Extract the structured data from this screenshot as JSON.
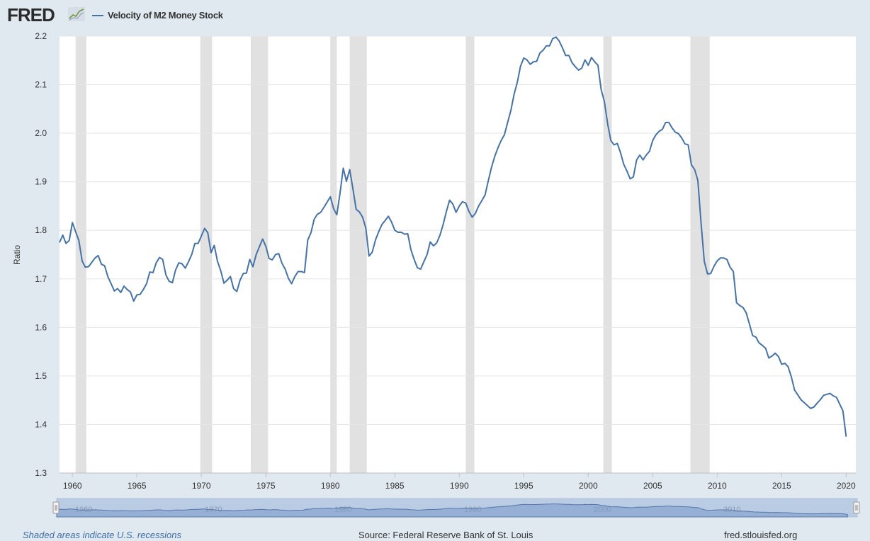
{
  "header": {
    "logo_text": "FRED",
    "logo_icon": "chart-trend-icon",
    "legend_label": "Velocity of M2 Money Stock",
    "series_color": "#4572a7"
  },
  "chart_data": {
    "type": "line",
    "title": "Velocity of M2 Money Stock",
    "xlabel": "",
    "ylabel": "Ratio",
    "ylim": [
      1.3,
      2.2
    ],
    "xlim": [
      1959.0,
      2020.75
    ],
    "yticks": [
      "1.3",
      "1.4",
      "1.5",
      "1.6",
      "1.7",
      "1.8",
      "1.9",
      "2.0",
      "2.1",
      "2.2"
    ],
    "xticks": [
      "1960",
      "1965",
      "1970",
      "1975",
      "1980",
      "1985",
      "1990",
      "1995",
      "2000",
      "2005",
      "2010",
      "2015",
      "2020"
    ],
    "navigator_labels": [
      "1960",
      "1970",
      "1980",
      "1990",
      "2000",
      "2010"
    ],
    "recessions": [
      [
        1960.25,
        1961.08
      ],
      [
        1969.92,
        1970.83
      ],
      [
        1973.83,
        1975.17
      ],
      [
        1980.0,
        1980.5
      ],
      [
        1981.5,
        1982.83
      ],
      [
        1990.5,
        1991.17
      ],
      [
        2001.17,
        2001.83
      ],
      [
        2007.92,
        2009.42
      ]
    ],
    "series": [
      {
        "name": "Velocity of M2 Money Stock",
        "points": [
          [
            1959.0,
            1.775
          ],
          [
            1959.25,
            1.79
          ],
          [
            1959.5,
            1.773
          ],
          [
            1959.75,
            1.779
          ],
          [
            1960.0,
            1.816
          ],
          [
            1960.25,
            1.797
          ],
          [
            1960.5,
            1.779
          ],
          [
            1960.75,
            1.737
          ],
          [
            1961.0,
            1.724
          ],
          [
            1961.25,
            1.725
          ],
          [
            1961.5,
            1.734
          ],
          [
            1961.75,
            1.743
          ],
          [
            1962.0,
            1.748
          ],
          [
            1962.25,
            1.73
          ],
          [
            1962.5,
            1.727
          ],
          [
            1962.75,
            1.704
          ],
          [
            1963.0,
            1.69
          ],
          [
            1963.25,
            1.675
          ],
          [
            1963.5,
            1.68
          ],
          [
            1963.75,
            1.672
          ],
          [
            1964.0,
            1.685
          ],
          [
            1964.25,
            1.678
          ],
          [
            1964.5,
            1.673
          ],
          [
            1964.75,
            1.654
          ],
          [
            1965.0,
            1.667
          ],
          [
            1965.25,
            1.668
          ],
          [
            1965.5,
            1.678
          ],
          [
            1965.75,
            1.69
          ],
          [
            1966.0,
            1.714
          ],
          [
            1966.25,
            1.713
          ],
          [
            1966.5,
            1.733
          ],
          [
            1966.75,
            1.744
          ],
          [
            1967.0,
            1.74
          ],
          [
            1967.25,
            1.708
          ],
          [
            1967.5,
            1.695
          ],
          [
            1967.75,
            1.692
          ],
          [
            1968.0,
            1.718
          ],
          [
            1968.25,
            1.733
          ],
          [
            1968.5,
            1.731
          ],
          [
            1968.75,
            1.722
          ],
          [
            1969.0,
            1.735
          ],
          [
            1969.25,
            1.75
          ],
          [
            1969.5,
            1.773
          ],
          [
            1969.75,
            1.773
          ],
          [
            1970.0,
            1.788
          ],
          [
            1970.25,
            1.804
          ],
          [
            1970.5,
            1.795
          ],
          [
            1970.75,
            1.754
          ],
          [
            1971.0,
            1.769
          ],
          [
            1971.25,
            1.736
          ],
          [
            1971.5,
            1.717
          ],
          [
            1971.75,
            1.691
          ],
          [
            1972.0,
            1.697
          ],
          [
            1972.25,
            1.705
          ],
          [
            1972.5,
            1.68
          ],
          [
            1972.75,
            1.674
          ],
          [
            1973.0,
            1.697
          ],
          [
            1973.25,
            1.711
          ],
          [
            1973.5,
            1.712
          ],
          [
            1973.75,
            1.74
          ],
          [
            1974.0,
            1.725
          ],
          [
            1974.25,
            1.75
          ],
          [
            1974.5,
            1.766
          ],
          [
            1974.75,
            1.782
          ],
          [
            1975.0,
            1.767
          ],
          [
            1975.25,
            1.742
          ],
          [
            1975.5,
            1.739
          ],
          [
            1975.75,
            1.75
          ],
          [
            1976.0,
            1.752
          ],
          [
            1976.25,
            1.732
          ],
          [
            1976.5,
            1.72
          ],
          [
            1976.75,
            1.701
          ],
          [
            1977.0,
            1.69
          ],
          [
            1977.25,
            1.705
          ],
          [
            1977.5,
            1.715
          ],
          [
            1977.75,
            1.715
          ],
          [
            1978.0,
            1.713
          ],
          [
            1978.25,
            1.78
          ],
          [
            1978.5,
            1.795
          ],
          [
            1978.75,
            1.823
          ],
          [
            1979.0,
            1.833
          ],
          [
            1979.25,
            1.837
          ],
          [
            1979.5,
            1.847
          ],
          [
            1979.75,
            1.858
          ],
          [
            1980.0,
            1.869
          ],
          [
            1980.25,
            1.845
          ],
          [
            1980.5,
            1.832
          ],
          [
            1980.75,
            1.876
          ],
          [
            1981.0,
            1.928
          ],
          [
            1981.25,
            1.901
          ],
          [
            1981.5,
            1.925
          ],
          [
            1981.75,
            1.886
          ],
          [
            1982.0,
            1.843
          ],
          [
            1982.25,
            1.838
          ],
          [
            1982.5,
            1.827
          ],
          [
            1982.75,
            1.805
          ],
          [
            1983.0,
            1.747
          ],
          [
            1983.25,
            1.755
          ],
          [
            1983.5,
            1.78
          ],
          [
            1983.75,
            1.797
          ],
          [
            1984.0,
            1.812
          ],
          [
            1984.25,
            1.82
          ],
          [
            1984.5,
            1.829
          ],
          [
            1984.75,
            1.817
          ],
          [
            1985.0,
            1.8
          ],
          [
            1985.25,
            1.796
          ],
          [
            1985.5,
            1.796
          ],
          [
            1985.75,
            1.792
          ],
          [
            1986.0,
            1.793
          ],
          [
            1986.25,
            1.76
          ],
          [
            1986.5,
            1.74
          ],
          [
            1986.75,
            1.723
          ],
          [
            1987.0,
            1.72
          ],
          [
            1987.25,
            1.735
          ],
          [
            1987.5,
            1.75
          ],
          [
            1987.75,
            1.776
          ],
          [
            1988.0,
            1.768
          ],
          [
            1988.25,
            1.774
          ],
          [
            1988.5,
            1.79
          ],
          [
            1988.75,
            1.812
          ],
          [
            1989.0,
            1.839
          ],
          [
            1989.25,
            1.862
          ],
          [
            1989.5,
            1.854
          ],
          [
            1989.75,
            1.837
          ],
          [
            1990.0,
            1.85
          ],
          [
            1990.25,
            1.859
          ],
          [
            1990.5,
            1.856
          ],
          [
            1990.75,
            1.839
          ],
          [
            1991.0,
            1.827
          ],
          [
            1991.25,
            1.835
          ],
          [
            1991.5,
            1.85
          ],
          [
            1991.75,
            1.861
          ],
          [
            1992.0,
            1.873
          ],
          [
            1992.25,
            1.902
          ],
          [
            1992.5,
            1.93
          ],
          [
            1992.75,
            1.952
          ],
          [
            1993.0,
            1.97
          ],
          [
            1993.25,
            1.985
          ],
          [
            1993.5,
            1.997
          ],
          [
            1993.75,
            2.022
          ],
          [
            1994.0,
            2.047
          ],
          [
            1994.25,
            2.08
          ],
          [
            1994.5,
            2.105
          ],
          [
            1994.75,
            2.138
          ],
          [
            1995.0,
            2.155
          ],
          [
            1995.25,
            2.151
          ],
          [
            1995.5,
            2.142
          ],
          [
            1995.75,
            2.147
          ],
          [
            1996.0,
            2.148
          ],
          [
            1996.25,
            2.165
          ],
          [
            1996.5,
            2.171
          ],
          [
            1996.75,
            2.18
          ],
          [
            1997.0,
            2.18
          ],
          [
            1997.25,
            2.195
          ],
          [
            1997.5,
            2.198
          ],
          [
            1997.75,
            2.19
          ],
          [
            1998.0,
            2.176
          ],
          [
            1998.25,
            2.16
          ],
          [
            1998.5,
            2.16
          ],
          [
            1998.75,
            2.145
          ],
          [
            1999.0,
            2.137
          ],
          [
            1999.25,
            2.13
          ],
          [
            1999.5,
            2.134
          ],
          [
            1999.75,
            2.151
          ],
          [
            2000.0,
            2.14
          ],
          [
            2000.25,
            2.156
          ],
          [
            2000.5,
            2.147
          ],
          [
            2000.75,
            2.14
          ],
          [
            2001.0,
            2.09
          ],
          [
            2001.25,
            2.065
          ],
          [
            2001.5,
            2.02
          ],
          [
            2001.75,
            1.985
          ],
          [
            2002.0,
            1.976
          ],
          [
            2002.25,
            1.979
          ],
          [
            2002.5,
            1.96
          ],
          [
            2002.75,
            1.936
          ],
          [
            2003.0,
            1.922
          ],
          [
            2003.25,
            1.906
          ],
          [
            2003.5,
            1.91
          ],
          [
            2003.75,
            1.945
          ],
          [
            2004.0,
            1.955
          ],
          [
            2004.25,
            1.945
          ],
          [
            2004.5,
            1.955
          ],
          [
            2004.75,
            1.963
          ],
          [
            2005.0,
            1.985
          ],
          [
            2005.25,
            1.997
          ],
          [
            2005.5,
            2.004
          ],
          [
            2005.75,
            2.008
          ],
          [
            2006.0,
            2.022
          ],
          [
            2006.25,
            2.022
          ],
          [
            2006.5,
            2.011
          ],
          [
            2006.75,
            2.002
          ],
          [
            2007.0,
            1.999
          ],
          [
            2007.25,
            1.99
          ],
          [
            2007.5,
            1.978
          ],
          [
            2007.75,
            1.976
          ],
          [
            2008.0,
            1.935
          ],
          [
            2008.25,
            1.925
          ],
          [
            2008.5,
            1.903
          ],
          [
            2008.75,
            1.814
          ],
          [
            2009.0,
            1.736
          ],
          [
            2009.25,
            1.71
          ],
          [
            2009.5,
            1.711
          ],
          [
            2009.75,
            1.726
          ],
          [
            2010.0,
            1.737
          ],
          [
            2010.25,
            1.743
          ],
          [
            2010.5,
            1.743
          ],
          [
            2010.75,
            1.74
          ],
          [
            2011.0,
            1.724
          ],
          [
            2011.25,
            1.715
          ],
          [
            2011.5,
            1.651
          ],
          [
            2011.75,
            1.645
          ],
          [
            2012.0,
            1.641
          ],
          [
            2012.25,
            1.63
          ],
          [
            2012.5,
            1.607
          ],
          [
            2012.75,
            1.583
          ],
          [
            2013.0,
            1.58
          ],
          [
            2013.25,
            1.568
          ],
          [
            2013.5,
            1.563
          ],
          [
            2013.75,
            1.557
          ],
          [
            2014.0,
            1.537
          ],
          [
            2014.25,
            1.541
          ],
          [
            2014.5,
            1.547
          ],
          [
            2014.75,
            1.54
          ],
          [
            2015.0,
            1.524
          ],
          [
            2015.25,
            1.526
          ],
          [
            2015.5,
            1.519
          ],
          [
            2015.75,
            1.498
          ],
          [
            2016.0,
            1.471
          ],
          [
            2016.25,
            1.461
          ],
          [
            2016.5,
            1.451
          ],
          [
            2016.75,
            1.445
          ],
          [
            2017.0,
            1.439
          ],
          [
            2017.25,
            1.433
          ],
          [
            2017.5,
            1.436
          ],
          [
            2017.75,
            1.444
          ],
          [
            2018.0,
            1.451
          ],
          [
            2018.25,
            1.46
          ],
          [
            2018.5,
            1.462
          ],
          [
            2018.75,
            1.464
          ],
          [
            2019.0,
            1.459
          ],
          [
            2019.25,
            1.456
          ],
          [
            2019.5,
            1.442
          ],
          [
            2019.75,
            1.428
          ],
          [
            2020.0,
            1.375
          ]
        ]
      }
    ]
  },
  "footer": {
    "recession_note": "Shaded areas indicate U.S. recessions",
    "source": "Source: Federal Reserve Bank of St. Louis",
    "url": "fred.stlouisfed.org"
  }
}
